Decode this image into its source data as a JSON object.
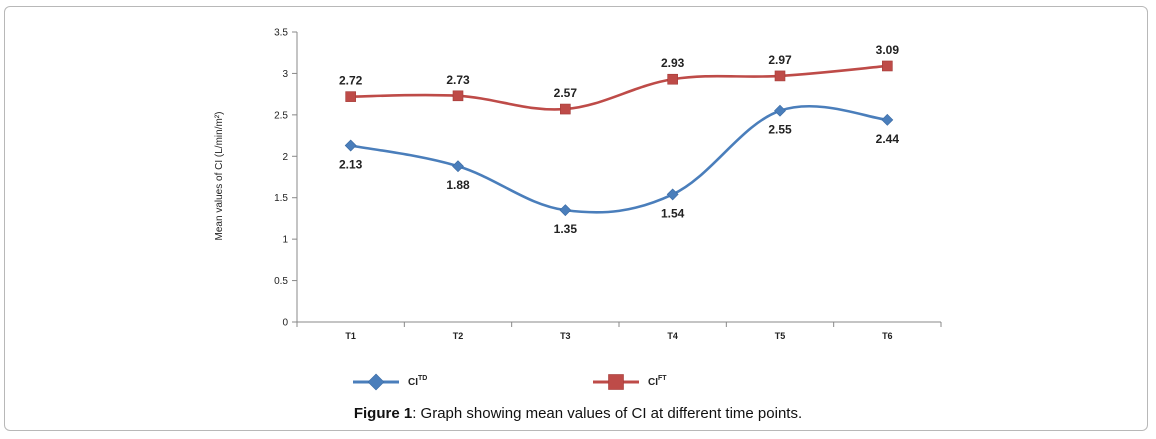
{
  "caption": {
    "label": "Figure 1",
    "text": ": Graph showing mean values of CI at different time points."
  },
  "chart_data": {
    "type": "line",
    "categories": [
      "T1",
      "T2",
      "T3",
      "T4",
      "T5",
      "T6"
    ],
    "series": [
      {
        "name": "CI",
        "sup": "TD",
        "color": "#4a7ebb",
        "marker": "diamond",
        "label_pos": "below",
        "values": [
          2.13,
          1.88,
          1.35,
          1.54,
          2.55,
          2.44
        ]
      },
      {
        "name": "CI",
        "sup": "FT",
        "color": "#be4b48",
        "marker": "square",
        "label_pos": "above",
        "values": [
          2.72,
          2.73,
          2.57,
          2.93,
          2.97,
          3.09
        ]
      }
    ],
    "ylabel": "Mean values of CI (L/min/m²)",
    "ylim": [
      0,
      3.5
    ],
    "yticks": [
      "0",
      "0.5",
      "1",
      "1.5",
      "2",
      "2.5",
      "3",
      "3.5"
    ],
    "grid": false,
    "legend": "bottom"
  }
}
